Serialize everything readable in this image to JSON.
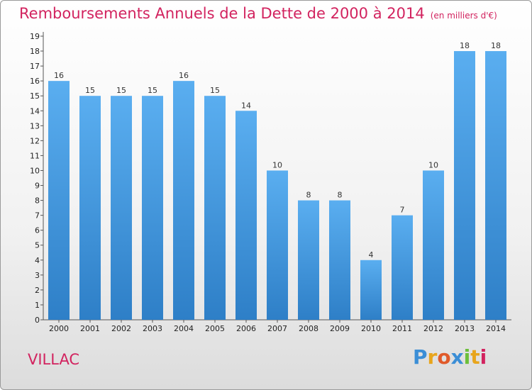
{
  "title": "Remboursements Annuels de la Dette de 2000 à 2014",
  "unit": "(en milliers d'€)",
  "commune": "VILLAC",
  "logo": {
    "letters": [
      "P",
      "r",
      "o",
      "x",
      "i",
      "t",
      "i"
    ],
    "colors": [
      "#3b8ed6",
      "#e8a51c",
      "#e05a2a",
      "#3b8ed6",
      "#6cbf3a",
      "#e8a51c",
      "#d2235f"
    ]
  },
  "colors": {
    "bar_top": "#5aaef0",
    "bar_bottom": "#2e7fc7",
    "title": "#d2235f"
  },
  "chart_data": {
    "type": "bar",
    "categories": [
      "2000",
      "2001",
      "2002",
      "2003",
      "2004",
      "2005",
      "2006",
      "2007",
      "2008",
      "2009",
      "2010",
      "2011",
      "2012",
      "2013",
      "2014"
    ],
    "values": [
      16,
      15,
      15,
      15,
      16,
      15,
      14,
      10,
      8,
      8,
      4,
      7,
      10,
      18,
      18
    ],
    "ylim": [
      0,
      19
    ],
    "yticks": [
      0,
      1,
      2,
      3,
      4,
      5,
      6,
      7,
      8,
      9,
      10,
      11,
      12,
      13,
      14,
      15,
      16,
      17,
      18,
      19
    ],
    "xlabel": "",
    "ylabel": "",
    "grid": false,
    "legend": "none"
  }
}
